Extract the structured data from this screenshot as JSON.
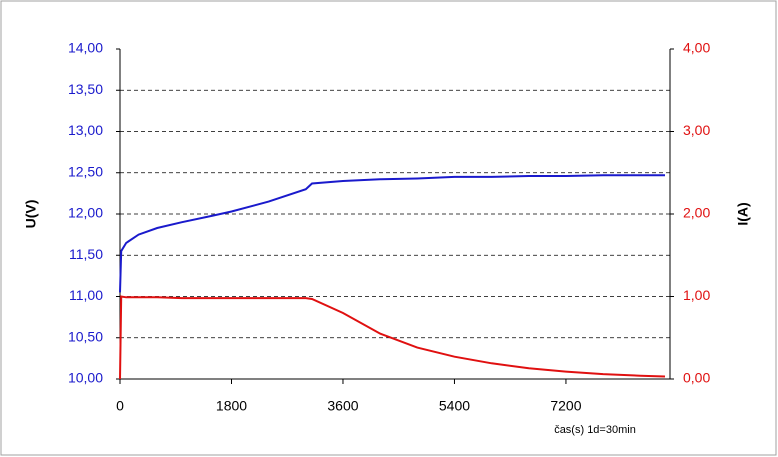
{
  "chart_data": {
    "type": "line",
    "x": [
      0,
      20,
      100,
      300,
      600,
      1000,
      1500,
      1800,
      2400,
      3000,
      3100,
      3600,
      4200,
      4800,
      5400,
      6000,
      6600,
      7200,
      7800,
      8400,
      8800
    ],
    "series": [
      {
        "name": "U(V)",
        "color": "#1a1acc",
        "axis": "y",
        "values": [
          11.05,
          11.55,
          11.65,
          11.75,
          11.83,
          11.9,
          11.98,
          12.03,
          12.15,
          12.3,
          12.37,
          12.4,
          12.42,
          12.43,
          12.45,
          12.45,
          12.46,
          12.46,
          12.47,
          12.47,
          12.47
        ]
      },
      {
        "name": "I(A)",
        "color": "#e01010",
        "axis": "y2",
        "values": [
          0,
          1.0,
          0.99,
          0.99,
          0.99,
          0.98,
          0.98,
          0.98,
          0.98,
          0.98,
          0.97,
          0.8,
          0.55,
          0.38,
          0.27,
          0.19,
          0.13,
          0.09,
          0.06,
          0.04,
          0.03
        ]
      }
    ],
    "xlim": [
      0,
      8880
    ],
    "xticks": [
      0,
      1800,
      3600,
      5400,
      7200
    ],
    "ylim": [
      10,
      14
    ],
    "yticks": [
      {
        "value": 10,
        "label": "10,00"
      },
      {
        "value": 10.5,
        "label": "10,50"
      },
      {
        "value": 11,
        "label": "11,00"
      },
      {
        "value": 11.5,
        "label": "11,50"
      },
      {
        "value": 12,
        "label": "12,00"
      },
      {
        "value": 12.5,
        "label": "12,50"
      },
      {
        "value": 13,
        "label": "13,00"
      },
      {
        "value": 13.5,
        "label": "13,50"
      },
      {
        "value": 14,
        "label": "14,00"
      }
    ],
    "y2lim": [
      0,
      4
    ],
    "y2ticks": [
      {
        "value": 0,
        "label": "0,00"
      },
      {
        "value": 1,
        "label": "1,00"
      },
      {
        "value": 2,
        "label": "2,00"
      },
      {
        "value": 3,
        "label": "3,00"
      },
      {
        "value": 4,
        "label": "4,00"
      }
    ],
    "ylabel": "U(V)",
    "y2label": "I(A)",
    "xlabel": "čas(s) 1d=30min",
    "grid": true
  }
}
